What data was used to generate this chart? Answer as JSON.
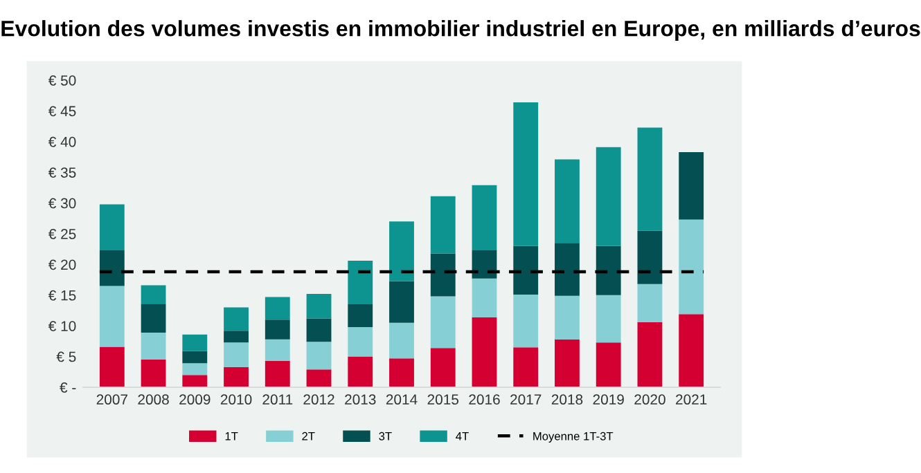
{
  "chart_data": {
    "type": "bar",
    "title": "Evolution des volumes investis en immobilier industriel en Europe, en milliards d’euros",
    "stacked": true,
    "categories": [
      "2007",
      "2008",
      "2009",
      "2010",
      "2011",
      "2012",
      "2013",
      "2014",
      "2015",
      "2016",
      "2017",
      "2018",
      "2019",
      "2020",
      "2021"
    ],
    "series": [
      {
        "name": "1T",
        "color": "#d50032",
        "values": [
          6.6,
          4.5,
          2.0,
          3.3,
          4.3,
          2.9,
          5.0,
          4.7,
          6.4,
          11.4,
          6.5,
          7.8,
          7.3,
          10.6,
          11.9
        ]
      },
      {
        "name": "2T",
        "color": "#86d0d5",
        "values": [
          9.9,
          4.4,
          1.9,
          4.0,
          3.5,
          4.5,
          4.8,
          5.8,
          8.4,
          6.3,
          8.6,
          7.1,
          7.7,
          6.2,
          15.4
        ]
      },
      {
        "name": "3T",
        "color": "#044f51",
        "values": [
          5.8,
          4.7,
          2.0,
          1.9,
          3.2,
          3.8,
          3.7,
          6.8,
          7.0,
          4.6,
          7.9,
          8.6,
          8.0,
          8.7,
          11.0
        ]
      },
      {
        "name": "4T",
        "color": "#0e9490",
        "values": [
          7.5,
          3.0,
          2.7,
          3.8,
          3.7,
          4.0,
          7.1,
          9.7,
          9.3,
          10.6,
          23.4,
          13.6,
          16.1,
          16.8,
          null
        ]
      }
    ],
    "ref_lines": [
      {
        "axis": "y",
        "value": 18.8,
        "label": "Moyenne 1T-3T",
        "color": "#000000",
        "line_style": "dashed"
      }
    ],
    "ylim": [
      0,
      50
    ],
    "yticks": [
      {
        "value": 0,
        "label": "€ -"
      },
      {
        "value": 5,
        "label": "€ 5"
      },
      {
        "value": 10,
        "label": "€ 10"
      },
      {
        "value": 15,
        "label": "€ 15"
      },
      {
        "value": 20,
        "label": "€ 20"
      },
      {
        "value": 25,
        "label": "€ 25"
      },
      {
        "value": 30,
        "label": "€ 30"
      },
      {
        "value": 35,
        "label": "€ 35"
      },
      {
        "value": 40,
        "label": "€ 40"
      },
      {
        "value": 45,
        "label": "€ 45"
      },
      {
        "value": 50,
        "label": "€ 50"
      }
    ],
    "grid": false,
    "legend": "bottom"
  }
}
